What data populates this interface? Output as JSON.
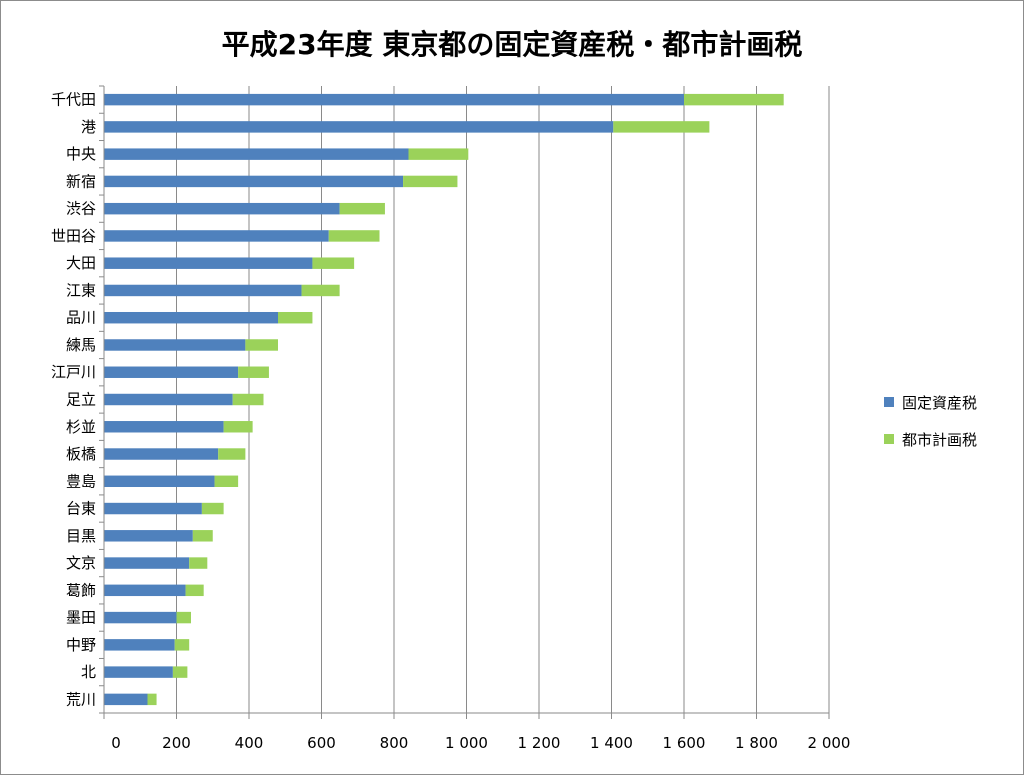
{
  "chart_data": {
    "type": "bar",
    "orientation": "horizontal",
    "stacked": true,
    "title": "平成23年度 東京都の固定資産税・都市計画税",
    "xlabel": "",
    "ylabel": "",
    "xlim": [
      0,
      2000
    ],
    "xticks": [
      0,
      200,
      400,
      600,
      800,
      1000,
      1200,
      1400,
      1600,
      1800,
      2000
    ],
    "xtick_labels": [
      "0",
      "200",
      "400",
      "600",
      "800",
      "1 000",
      "1 200",
      "1 400",
      "1 600",
      "1 800",
      "2 000"
    ],
    "grid": true,
    "legend_position": "right",
    "categories": [
      "千代田",
      "港",
      "中央",
      "新宿",
      "渋谷",
      "世田谷",
      "大田",
      "江東",
      "品川",
      "練馬",
      "江戸川",
      "足立",
      "杉並",
      "板橋",
      "豊島",
      "台東",
      "目黒",
      "文京",
      "葛飾",
      "墨田",
      "中野",
      "北",
      "荒川"
    ],
    "series": [
      {
        "name": "固定資産税",
        "color": "#4f81bd",
        "values": [
          1600,
          1405,
          840,
          825,
          650,
          620,
          575,
          545,
          480,
          390,
          370,
          355,
          330,
          315,
          305,
          270,
          245,
          235,
          225,
          200,
          195,
          190,
          120
        ]
      },
      {
        "name": "都市計画税",
        "color": "#9bd25a",
        "values": [
          275,
          265,
          165,
          150,
          125,
          140,
          115,
          105,
          95,
          90,
          85,
          85,
          80,
          75,
          65,
          60,
          55,
          50,
          50,
          40,
          40,
          40,
          25
        ]
      }
    ]
  }
}
